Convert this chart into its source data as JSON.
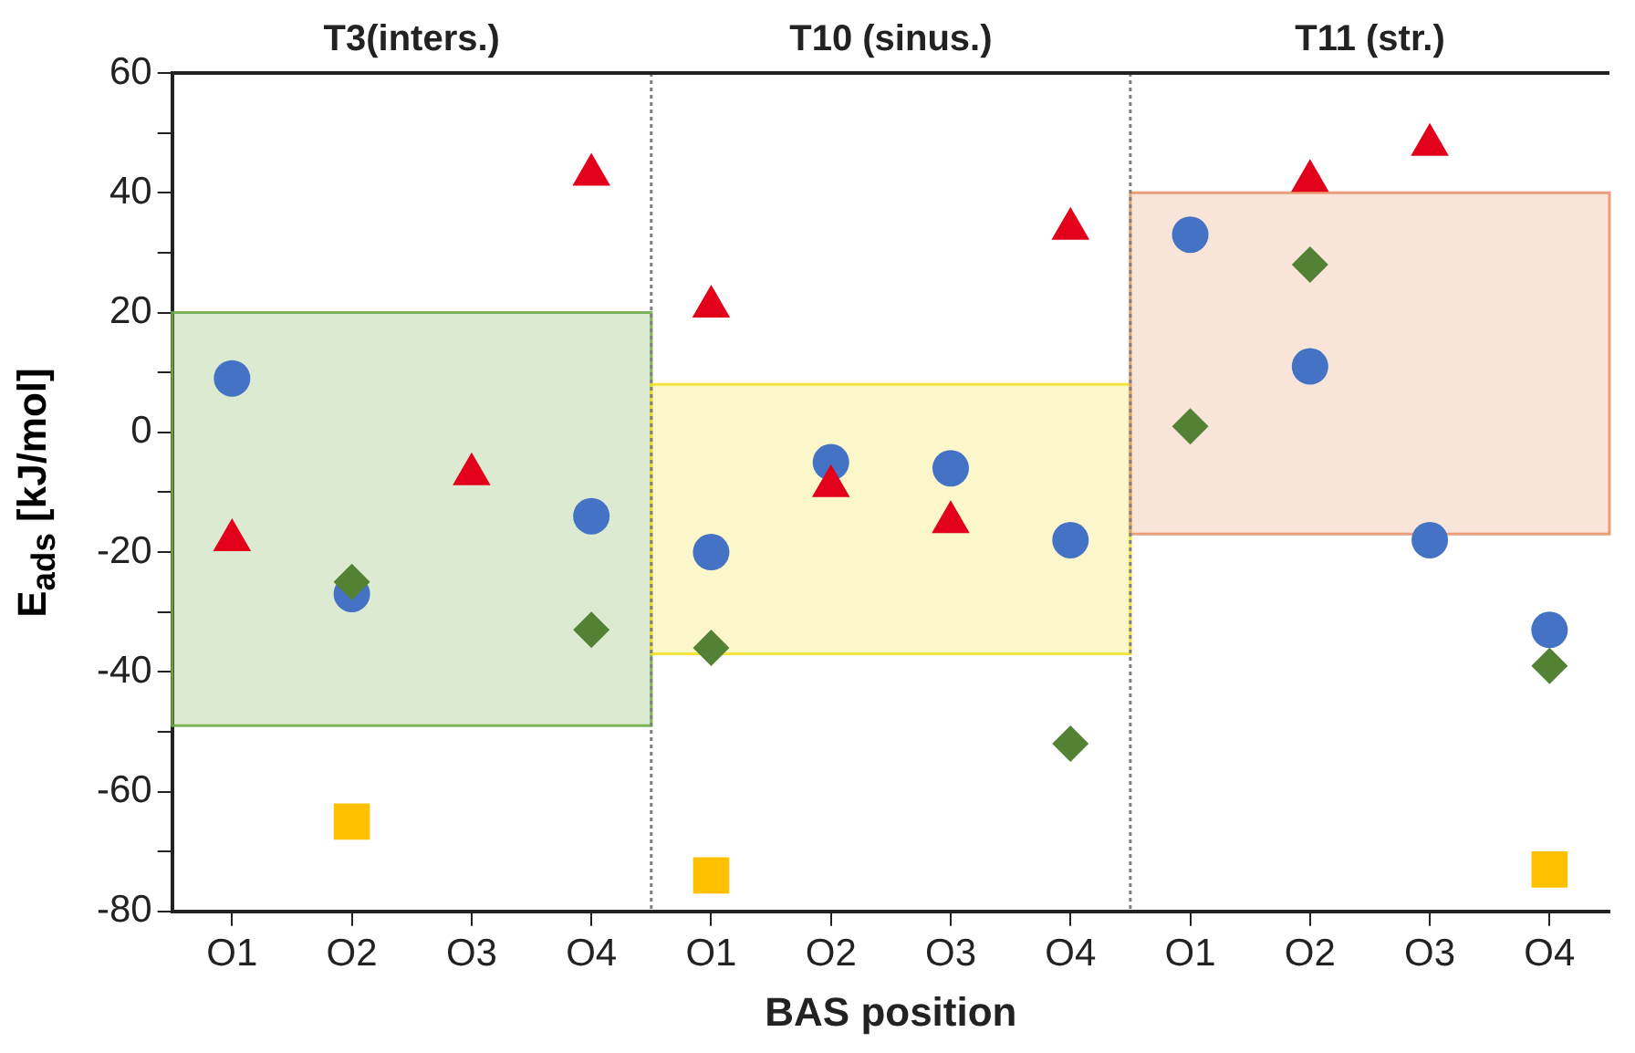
{
  "chart_data": {
    "type": "scatter",
    "xlabel": "BAS position",
    "ylabel": "E$_{ads}$ [kJ/mol]",
    "categories": [
      "O1",
      "O2",
      "O3",
      "O4",
      "O1",
      "O2",
      "O3",
      "O4",
      "O1",
      "O2",
      "O3",
      "O4"
    ],
    "series": [
      {
        "color": "#4472c4",
        "marker": "circle",
        "values": [
          9,
          -27,
          null,
          -14,
          -20,
          -5,
          -6,
          -18,
          33,
          11,
          -18,
          -33
        ]
      },
      {
        "color": "#e3001b",
        "marker": "triangle",
        "values": [
          -18,
          null,
          -7,
          43,
          21,
          -9,
          -15,
          34,
          null,
          42,
          48,
          null
        ]
      },
      {
        "color": "#548235",
        "marker": "diamond",
        "values": [
          null,
          -25,
          null,
          -33,
          -36,
          null,
          null,
          -52,
          1,
          28,
          null,
          -39
        ]
      },
      {
        "color": "#ffc000",
        "marker": "square",
        "values": [
          null,
          -65,
          null,
          null,
          -74,
          null,
          null,
          null,
          null,
          null,
          null,
          -73
        ]
      }
    ],
    "ylim": [
      -80,
      60
    ],
    "yticks": [
      -80,
      {
        "value": -70,
        "label": null
      },
      -60,
      {
        "value": -50,
        "label": null
      },
      -40,
      {
        "value": -30,
        "label": null
      },
      -20,
      {
        "value": -10,
        "label": null
      },
      0,
      {
        "value": 10,
        "label": null
      },
      20,
      {
        "value": 30,
        "label": null
      },
      40,
      {
        "value": 50,
        "label": null
      },
      60
    ],
    "bands": [
      {
        "axis": "y",
        "from": -49,
        "to": 20,
        "color": "#70ad47"
      },
      {
        "axis": "y",
        "from": -37,
        "to": 8,
        "color": "#f2e02a"
      },
      {
        "axis": "y",
        "from": -17,
        "to": 40,
        "color": "#e8956a"
      }
    ],
    "annotations": [
      "T3(inters.)",
      "T10 (sinus.)",
      "T11 (str.)"
    ],
    "grid": false,
    "legend": false
  }
}
